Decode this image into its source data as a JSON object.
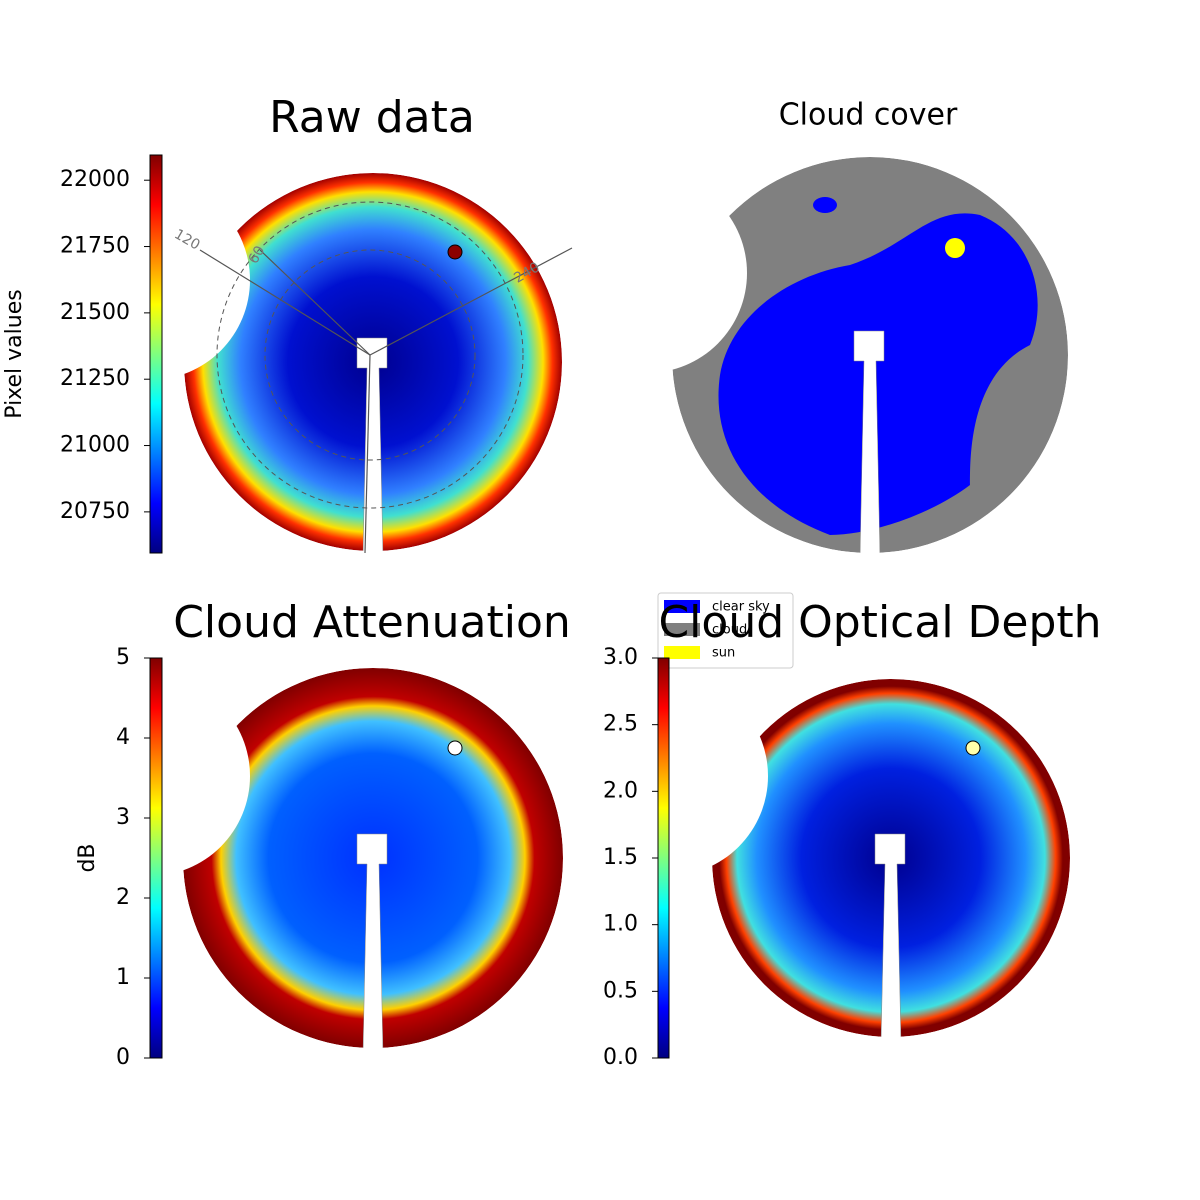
{
  "chart_data": [
    {
      "type": "image",
      "title": "Raw data",
      "ylabel": "Pixel values",
      "ylim": [
        20595,
        22095
      ],
      "yticks": [
        20750,
        21000,
        21250,
        21500,
        21750,
        22000
      ],
      "angle_labels": [
        "120",
        "60",
        "240"
      ]
    },
    {
      "type": "classes",
      "title": "Cloud cover",
      "series": [
        {
          "name": "clear sky",
          "color": "#0000ff"
        },
        {
          "name": "cloud",
          "color": "#808080"
        },
        {
          "name": "sun",
          "color": "#ffff00"
        }
      ]
    },
    {
      "type": "image",
      "title": "Cloud Attenuation",
      "ylabel": "dB",
      "ylim": [
        0,
        5
      ],
      "yticks": [
        0,
        1,
        2,
        3,
        4,
        5
      ]
    },
    {
      "type": "image",
      "title": "Cloud Optical Depth",
      "ylim": [
        0,
        3
      ],
      "yticks": [
        {
          "value": 0,
          "label": "0.0"
        },
        0.5,
        {
          "value": 1,
          "label": "1.0"
        },
        1.5,
        {
          "value": 2,
          "label": "2.0"
        },
        2.5,
        {
          "value": 3,
          "label": "3.0"
        }
      ]
    }
  ]
}
